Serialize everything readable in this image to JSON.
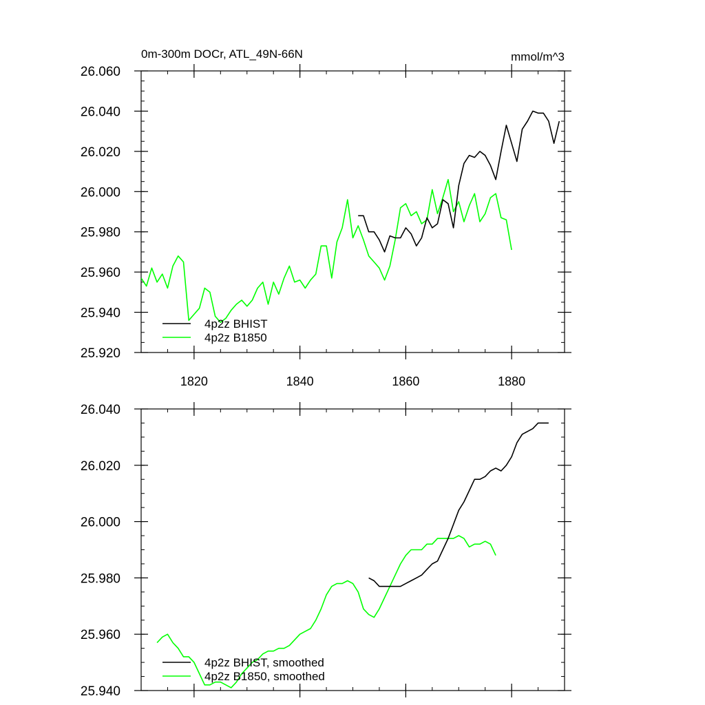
{
  "figure": {
    "title_left": "0m-300m DOCr, ATL_49N-66N",
    "title_right": "mmol/m^3"
  },
  "chart_data": [
    {
      "type": "line",
      "title": "0m-300m DOCr, ATL_49N-66N",
      "units_label": "mmol/m^3",
      "xlim": [
        1810,
        1890
      ],
      "ylim": [
        25.92,
        26.06
      ],
      "x_ticks": [
        1820,
        1840,
        1860,
        1880
      ],
      "x_tick_labels": [
        "1820",
        "1840",
        "1860",
        "1880"
      ],
      "y_ticks": [
        25.92,
        25.94,
        25.96,
        25.98,
        26.0,
        26.02,
        26.04,
        26.06
      ],
      "y_tick_labels": [
        "25.920",
        "25.940",
        "25.960",
        "25.980",
        "26.000",
        "26.020",
        "26.040",
        "26.060"
      ],
      "legend_position": "bottom-left",
      "series": [
        {
          "name": "4p2z BHIST",
          "color": "#000000",
          "x": [
            1851,
            1852,
            1853,
            1854,
            1855,
            1856,
            1857,
            1858,
            1859,
            1860,
            1861,
            1862,
            1863,
            1864,
            1865,
            1866,
            1867,
            1868,
            1869,
            1870,
            1871,
            1872,
            1873,
            1874,
            1875,
            1876,
            1877,
            1878,
            1879,
            1880,
            1881,
            1882,
            1883,
            1884,
            1885,
            1886,
            1887,
            1888,
            1889
          ],
          "values": [
            25.988,
            25.988,
            25.98,
            25.98,
            25.976,
            25.97,
            25.978,
            25.977,
            25.977,
            25.982,
            25.979,
            25.973,
            25.977,
            25.987,
            25.982,
            25.984,
            25.996,
            25.994,
            25.982,
            26.003,
            26.014,
            26.018,
            26.017,
            26.02,
            26.018,
            26.013,
            26.006,
            26.02,
            26.033,
            26.024,
            26.015,
            26.031,
            26.035,
            26.04,
            26.039,
            26.039,
            26.035,
            26.024,
            26.035
          ]
        },
        {
          "name": "4p2z B1850",
          "color": "#00ff00",
          "x": [
            1810,
            1811,
            1812,
            1813,
            1814,
            1815,
            1816,
            1817,
            1818,
            1819,
            1820,
            1821,
            1822,
            1823,
            1824,
            1825,
            1826,
            1827,
            1828,
            1829,
            1830,
            1831,
            1832,
            1833,
            1834,
            1835,
            1836,
            1837,
            1838,
            1839,
            1840,
            1841,
            1842,
            1843,
            1844,
            1845,
            1846,
            1847,
            1848,
            1849,
            1850,
            1851,
            1852,
            1853,
            1854,
            1855,
            1856,
            1857,
            1858,
            1859,
            1860,
            1861,
            1862,
            1863,
            1864,
            1865,
            1866,
            1867,
            1868,
            1869,
            1870,
            1871,
            1872,
            1873,
            1874,
            1875,
            1876,
            1877,
            1878,
            1879,
            1880
          ],
          "values": [
            25.957,
            25.953,
            25.962,
            25.955,
            25.959,
            25.952,
            25.963,
            25.968,
            25.965,
            25.936,
            25.939,
            25.942,
            25.952,
            25.95,
            25.938,
            25.935,
            25.937,
            25.941,
            25.944,
            25.946,
            25.943,
            25.946,
            25.952,
            25.955,
            25.944,
            25.955,
            25.949,
            25.957,
            25.963,
            25.955,
            25.956,
            25.952,
            25.956,
            25.959,
            25.973,
            25.973,
            25.957,
            25.975,
            25.982,
            25.996,
            25.977,
            25.983,
            25.976,
            25.968,
            25.965,
            25.962,
            25.956,
            25.963,
            25.976,
            25.992,
            25.994,
            25.988,
            25.99,
            25.984,
            25.986,
            26.001,
            25.989,
            25.997,
            26.006,
            25.99,
            25.995,
            25.985,
            25.993,
            25.999,
            25.985,
            25.989,
            25.997,
            25.999,
            25.987,
            25.986,
            25.971
          ]
        }
      ]
    },
    {
      "type": "line",
      "xlim": [
        1810,
        1890
      ],
      "ylim": [
        25.94,
        26.04
      ],
      "x_ticks": [
        1820,
        1840,
        1860,
        1880
      ],
      "y_ticks": [
        25.94,
        25.96,
        25.98,
        26.0,
        26.02,
        26.04
      ],
      "y_tick_labels": [
        "25.940",
        "25.960",
        "25.980",
        "26.000",
        "26.020",
        "26.040"
      ],
      "legend_position": "bottom-left",
      "series": [
        {
          "name": "4p2z BHIST, smoothed",
          "color": "#000000",
          "x": [
            1853,
            1854,
            1855,
            1856,
            1857,
            1858,
            1859,
            1860,
            1861,
            1862,
            1863,
            1864,
            1865,
            1866,
            1867,
            1868,
            1869,
            1870,
            1871,
            1872,
            1873,
            1874,
            1875,
            1876,
            1877,
            1878,
            1879,
            1880,
            1881,
            1882,
            1883,
            1884,
            1885,
            1886,
            1887
          ],
          "values": [
            25.98,
            25.979,
            25.977,
            25.977,
            25.977,
            25.977,
            25.977,
            25.978,
            25.979,
            25.98,
            25.981,
            25.983,
            25.985,
            25.986,
            25.99,
            25.994,
            25.999,
            26.004,
            26.007,
            26.011,
            26.015,
            26.015,
            26.016,
            26.018,
            26.019,
            26.018,
            26.02,
            26.023,
            26.028,
            26.031,
            26.032,
            26.033,
            26.035,
            26.035,
            26.035
          ]
        },
        {
          "name": "4p2z B1850, smoothed",
          "color": "#00ff00",
          "x": [
            1813,
            1814,
            1815,
            1816,
            1817,
            1818,
            1819,
            1820,
            1821,
            1822,
            1823,
            1824,
            1825,
            1826,
            1827,
            1828,
            1829,
            1830,
            1831,
            1832,
            1833,
            1834,
            1835,
            1836,
            1837,
            1838,
            1839,
            1840,
            1841,
            1842,
            1843,
            1844,
            1845,
            1846,
            1847,
            1848,
            1849,
            1850,
            1851,
            1852,
            1853,
            1854,
            1855,
            1856,
            1857,
            1858,
            1859,
            1860,
            1861,
            1862,
            1863,
            1864,
            1865,
            1866,
            1867,
            1868,
            1869,
            1870,
            1871,
            1872,
            1873,
            1874,
            1875,
            1876,
            1877
          ],
          "values": [
            25.957,
            25.959,
            25.96,
            25.957,
            25.955,
            25.952,
            25.952,
            25.95,
            25.946,
            25.942,
            25.942,
            25.943,
            25.943,
            25.942,
            25.941,
            25.943,
            25.946,
            25.948,
            25.95,
            25.951,
            25.953,
            25.954,
            25.954,
            25.955,
            25.955,
            25.956,
            25.958,
            25.96,
            25.961,
            25.962,
            25.965,
            25.969,
            25.974,
            25.977,
            25.978,
            25.978,
            25.979,
            25.978,
            25.975,
            25.969,
            25.967,
            25.966,
            25.969,
            25.973,
            25.977,
            25.981,
            25.985,
            25.988,
            25.99,
            25.99,
            25.99,
            25.992,
            25.992,
            25.994,
            25.994,
            25.994,
            25.994,
            25.995,
            25.994,
            25.991,
            25.992,
            25.992,
            25.993,
            25.992,
            25.988
          ]
        }
      ]
    }
  ]
}
